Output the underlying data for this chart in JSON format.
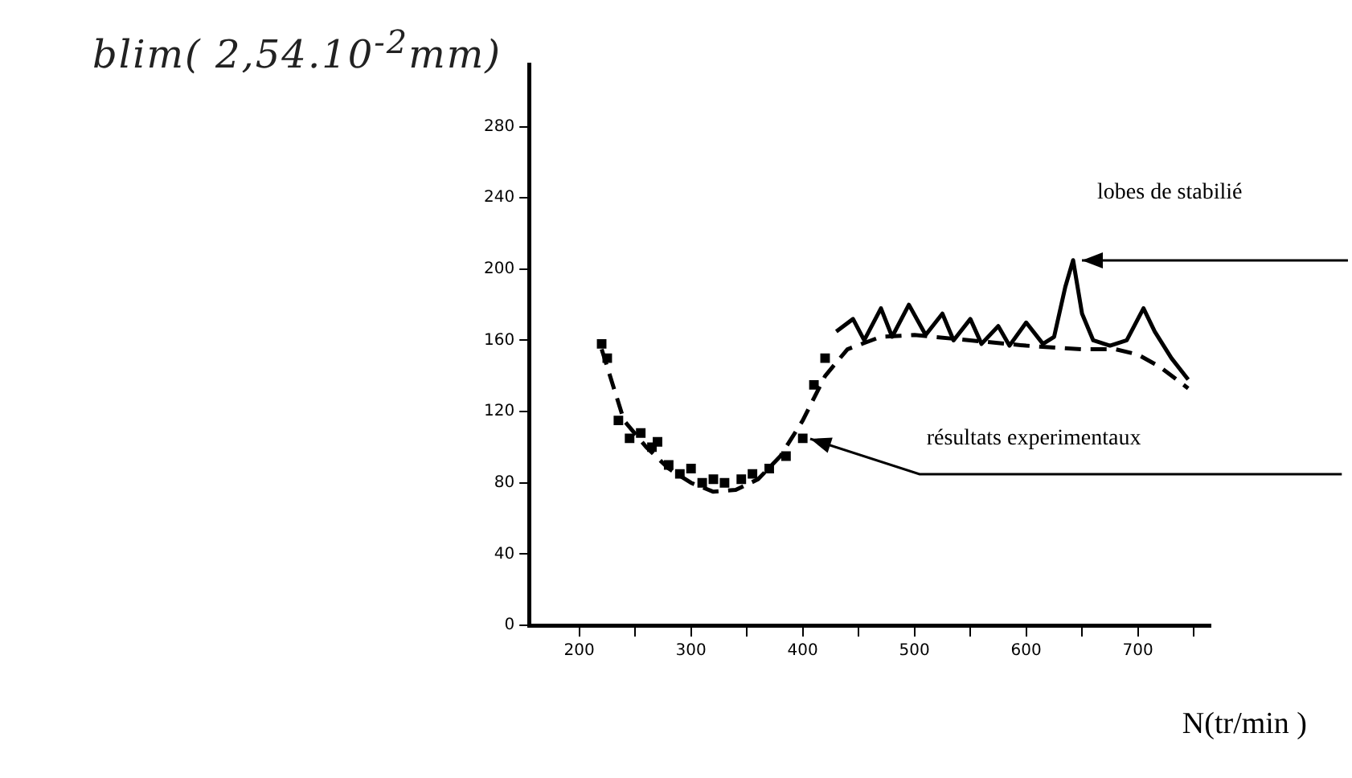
{
  "chart_data": {
    "type": "line",
    "ylabel": "blim( 2,54.10$^{-2}$mm)",
    "xlabel": "N(tr/min )",
    "xlim": [
      155,
      765
    ],
    "xticks": [
      200,
      {
        "value": 250,
        "label": null
      },
      300,
      {
        "value": 350,
        "label": null
      },
      400,
      {
        "value": 450,
        "label": null
      },
      500,
      {
        "value": 550,
        "label": null
      },
      600,
      {
        "value": 650,
        "label": null
      },
      700,
      {
        "value": 750,
        "label": null
      }
    ],
    "ylim": [
      0,
      315
    ],
    "yticks": [
      0,
      40,
      80,
      120,
      160,
      200,
      240,
      280
    ],
    "grid": false,
    "legend": false,
    "series": [
      {
        "type": "line",
        "color": "#000000",
        "line_style": "solid",
        "marker": "none",
        "x": [
          430,
          445,
          455,
          470,
          480,
          495,
          510,
          525,
          535,
          550,
          560,
          575,
          585,
          600,
          615,
          625,
          635,
          642,
          650,
          660,
          675,
          690,
          705,
          715,
          730,
          745
        ],
        "values": [
          165,
          172,
          160,
          178,
          162,
          180,
          163,
          175,
          160,
          172,
          158,
          168,
          157,
          170,
          158,
          162,
          190,
          205,
          175,
          160,
          157,
          160,
          178,
          165,
          150,
          138
        ]
      },
      {
        "type": "line",
        "color": "#000000",
        "line_style": "dashed",
        "marker": "none",
        "x": [
          220,
          240,
          260,
          280,
          300,
          320,
          340,
          360,
          380,
          400,
          420,
          440,
          470,
          500,
          550,
          600,
          650,
          680,
          700,
          720,
          745
        ],
        "values": [
          155,
          115,
          100,
          88,
          80,
          75,
          76,
          82,
          95,
          115,
          140,
          155,
          162,
          163,
          160,
          157,
          155,
          155,
          152,
          145,
          133
        ]
      },
      {
        "type": "scatter",
        "color": "#000000",
        "marker": "square",
        "x": [
          220,
          225,
          235,
          245,
          255,
          265,
          270,
          280,
          290,
          300,
          310,
          320,
          330,
          345,
          355,
          370,
          385,
          400,
          410,
          420
        ],
        "values": [
          158,
          150,
          115,
          105,
          108,
          100,
          103,
          90,
          85,
          88,
          80,
          82,
          80,
          82,
          85,
          88,
          95,
          105,
          135,
          150
        ]
      }
    ],
    "annotations": [
      {
        "text": "lobes de stabilié",
        "x": 642,
        "y": 205
      },
      {
        "text": "résultats experimentaux",
        "x": 400,
        "y": 105
      }
    ]
  }
}
